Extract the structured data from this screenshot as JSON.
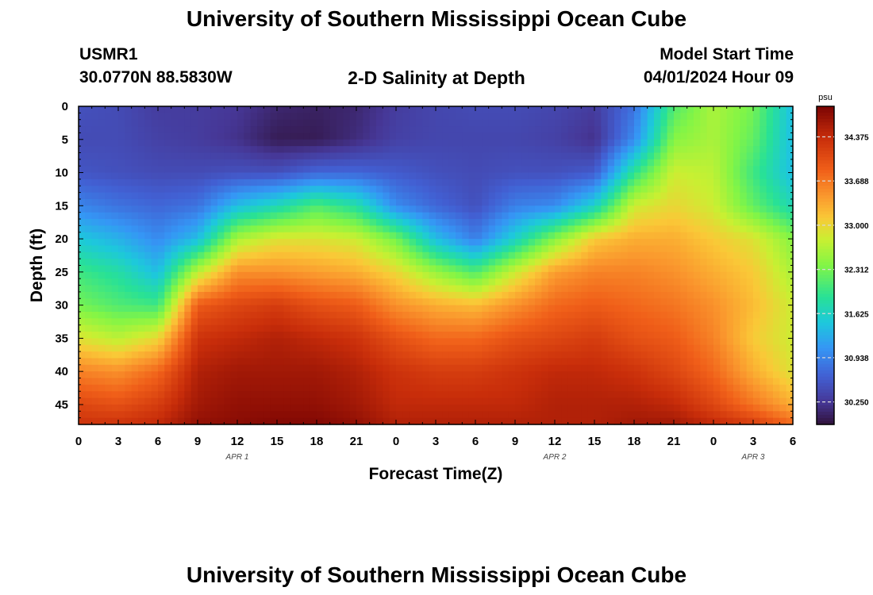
{
  "page": {
    "title": "University of Southern Mississippi Ocean Cube",
    "station": "USMR1",
    "coords": "30.0770N  88.5830W",
    "subtitle": "2-D Salinity at Depth",
    "model_label": "Model Start Time",
    "model_start": "04/01/2024 Hour 09",
    "bottom_title": "University of Southern Mississippi Ocean Cube"
  },
  "chart_data": {
    "type": "heatmap",
    "title": "2-D Salinity at Depth",
    "xlabel": "Forecast Time(Z)",
    "ylabel": "Depth (ft)",
    "x_range": [
      0,
      54
    ],
    "y_range": [
      0,
      48
    ],
    "x_ticks": [
      {
        "v": 0,
        "label": "0"
      },
      {
        "v": 3,
        "label": "3"
      },
      {
        "v": 6,
        "label": "6"
      },
      {
        "v": 9,
        "label": "9"
      },
      {
        "v": 12,
        "label": "12"
      },
      {
        "v": 15,
        "label": "15"
      },
      {
        "v": 18,
        "label": "18"
      },
      {
        "v": 21,
        "label": "21"
      },
      {
        "v": 24,
        "label": "0"
      },
      {
        "v": 27,
        "label": "3"
      },
      {
        "v": 30,
        "label": "6"
      },
      {
        "v": 33,
        "label": "9"
      },
      {
        "v": 36,
        "label": "12"
      },
      {
        "v": 39,
        "label": "15"
      },
      {
        "v": 42,
        "label": "18"
      },
      {
        "v": 45,
        "label": "21"
      },
      {
        "v": 48,
        "label": "0"
      },
      {
        "v": 51,
        "label": "3"
      },
      {
        "v": 54,
        "label": "6"
      }
    ],
    "date_labels": [
      {
        "v": 12,
        "label": "APR 1"
      },
      {
        "v": 36,
        "label": "APR 2"
      },
      {
        "v": 51,
        "label": "APR 3"
      }
    ],
    "y_ticks": [
      0,
      5,
      10,
      15,
      20,
      25,
      30,
      35,
      40,
      45
    ],
    "colorbar": {
      "unit": "psu",
      "range": [
        29.9,
        34.85
      ],
      "ticks": [
        30.25,
        30.938,
        31.625,
        32.312,
        33.0,
        33.688,
        34.375
      ],
      "tick_labels": [
        "30.250",
        "30.938",
        "31.625",
        "32.312",
        "33.000",
        "33.688",
        "34.375"
      ]
    },
    "profile_times": [
      0,
      3,
      6,
      9,
      12,
      15,
      18,
      21,
      24,
      27,
      30,
      33,
      36,
      39,
      42,
      45,
      48,
      51,
      54
    ],
    "profile_depths": [
      0,
      5,
      10,
      15,
      20,
      25,
      30,
      35,
      40,
      45,
      48
    ],
    "salinity": [
      [
        30.5,
        30.45,
        30.55,
        30.95,
        31.5,
        32.0,
        32.3,
        32.9,
        33.6,
        34.1,
        34.3
      ],
      [
        30.45,
        30.45,
        30.5,
        30.8,
        31.3,
        31.8,
        32.1,
        32.7,
        33.5,
        34.0,
        34.3
      ],
      [
        30.3,
        30.35,
        30.45,
        30.7,
        31.0,
        31.4,
        32.0,
        33.0,
        33.8,
        34.2,
        34.4
      ],
      [
        30.3,
        30.3,
        30.45,
        30.8,
        31.4,
        32.7,
        33.9,
        34.3,
        34.5,
        34.6,
        34.7
      ],
      [
        30.25,
        30.2,
        30.5,
        31.4,
        32.6,
        33.5,
        34.1,
        34.4,
        34.6,
        34.7,
        34.75
      ],
      [
        30.1,
        30.0,
        30.5,
        31.7,
        32.9,
        33.5,
        34.2,
        34.5,
        34.6,
        34.7,
        34.8
      ],
      [
        30.05,
        30.0,
        30.7,
        32.1,
        32.9,
        33.4,
        34.0,
        34.4,
        34.6,
        34.7,
        34.8
      ],
      [
        30.1,
        30.15,
        30.7,
        31.8,
        32.8,
        33.3,
        33.9,
        34.3,
        34.5,
        34.6,
        34.7
      ],
      [
        30.3,
        30.35,
        30.6,
        31.0,
        32.3,
        33.0,
        33.5,
        34.0,
        34.3,
        34.4,
        34.5
      ],
      [
        30.4,
        30.4,
        30.5,
        30.7,
        31.4,
        32.5,
        33.3,
        33.8,
        34.2,
        34.4,
        34.5
      ],
      [
        30.45,
        30.4,
        30.45,
        30.5,
        30.9,
        32.1,
        33.2,
        33.8,
        34.2,
        34.4,
        34.5
      ],
      [
        30.45,
        30.4,
        30.5,
        30.9,
        31.6,
        32.8,
        33.5,
        34.0,
        34.3,
        34.4,
        34.5
      ],
      [
        30.4,
        30.35,
        30.5,
        31.0,
        32.4,
        33.4,
        33.8,
        34.1,
        34.4,
        34.5,
        34.5
      ],
      [
        30.3,
        30.2,
        30.6,
        31.6,
        33.1,
        33.6,
        33.9,
        34.2,
        34.4,
        34.5,
        34.5
      ],
      [
        30.8,
        31.0,
        31.9,
        32.8,
        33.3,
        33.6,
        33.8,
        34.0,
        34.3,
        34.5,
        34.6
      ],
      [
        32.1,
        32.4,
        32.8,
        33.0,
        33.3,
        33.5,
        33.7,
        33.9,
        34.1,
        34.4,
        34.6
      ],
      [
        32.6,
        32.6,
        32.7,
        32.8,
        33.1,
        33.3,
        33.5,
        33.6,
        33.8,
        34.1,
        34.4
      ],
      [
        32.3,
        32.2,
        32.0,
        32.2,
        32.9,
        33.1,
        33.2,
        33.1,
        33.3,
        33.7,
        34.2
      ],
      [
        31.4,
        31.4,
        31.4,
        31.7,
        32.4,
        32.6,
        32.8,
        32.8,
        32.9,
        33.3,
        33.8
      ]
    ]
  }
}
